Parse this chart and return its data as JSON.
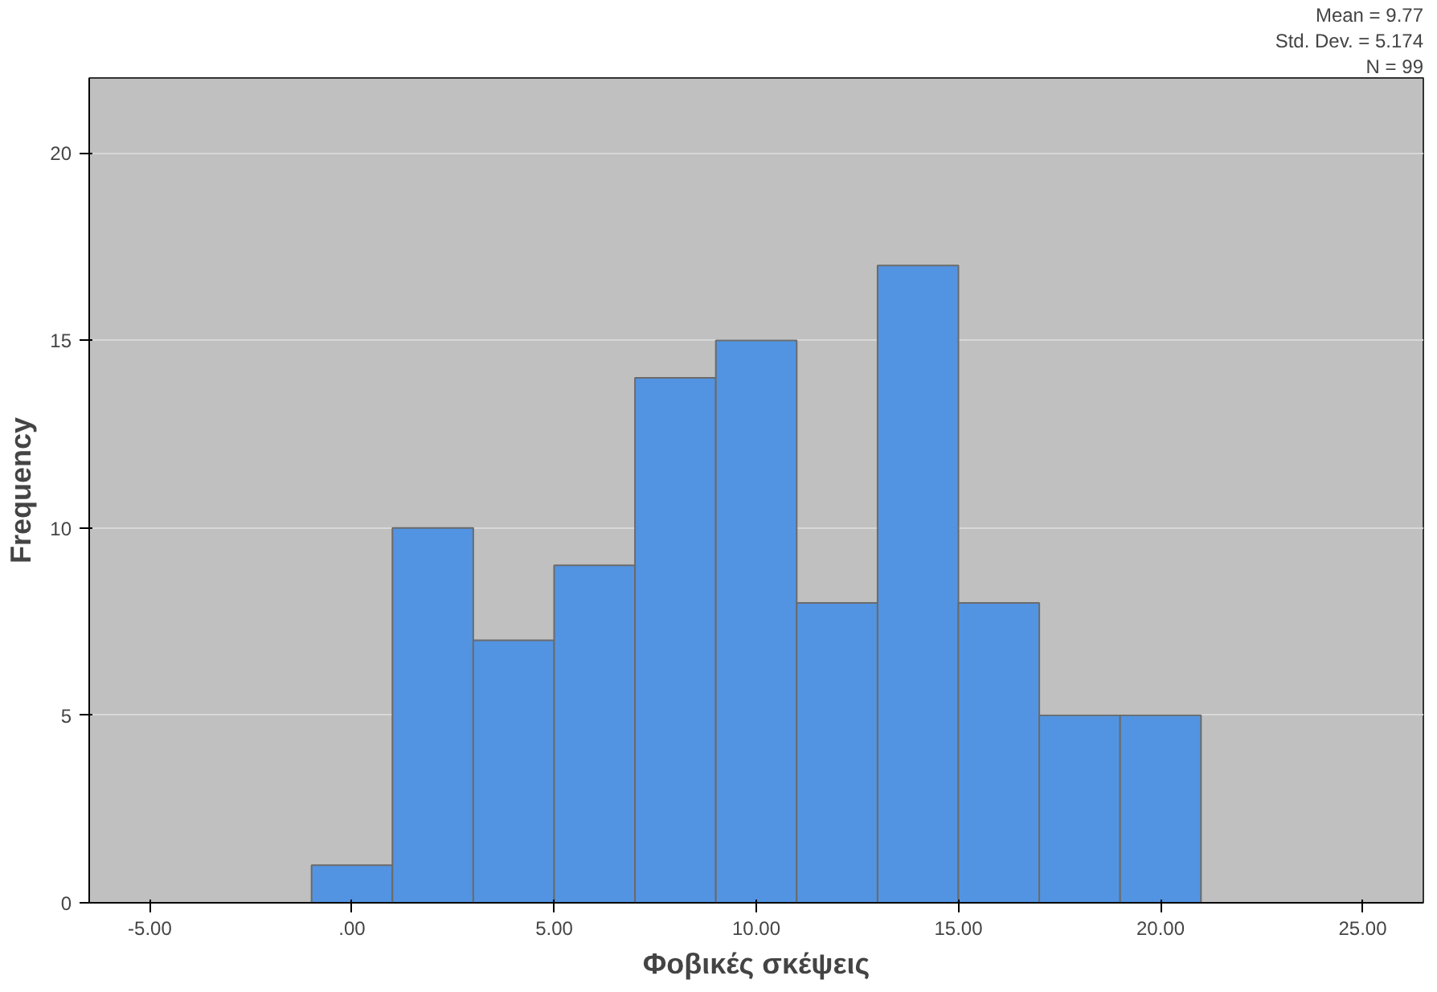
{
  "chart_data": {
    "type": "histogram",
    "xlabel": "Φοβικές σκέψεις",
    "ylabel": "Frequency",
    "bins": [
      -1,
      1,
      3,
      5,
      7,
      9,
      11,
      13,
      15,
      17,
      19,
      21
    ],
    "values": [
      1,
      10,
      7,
      9,
      14,
      15,
      8,
      17,
      8,
      5,
      5
    ],
    "color": "#5294e2",
    "xlim": [
      -6.5,
      26.5
    ],
    "ylim": [
      0,
      22
    ],
    "xticks": [
      {
        "value": -5,
        "label": "-5.00"
      },
      {
        "value": 0,
        "label": ".00"
      },
      {
        "value": 5,
        "label": "5.00"
      },
      {
        "value": 10,
        "label": "10.00"
      },
      {
        "value": 15,
        "label": "15.00"
      },
      {
        "value": 20,
        "label": "20.00"
      },
      {
        "value": 25,
        "label": "25.00"
      }
    ],
    "yticks": [
      0,
      5,
      10,
      15,
      20
    ],
    "grid": "y",
    "annotations": [
      "Mean = 9.77",
      "Std. Dev. = 5.174",
      "N = 99"
    ]
  }
}
